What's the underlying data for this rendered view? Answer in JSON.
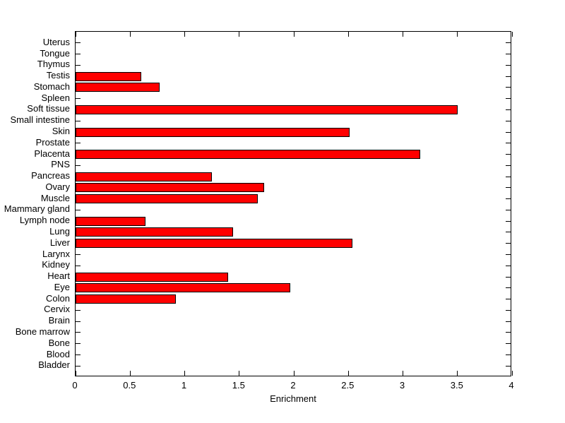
{
  "chart_data": {
    "type": "bar",
    "orientation": "horizontal",
    "title": "",
    "xlabel": "Enrichment",
    "ylabel": "",
    "xlim": [
      0,
      4
    ],
    "xticks": [
      0,
      0.5,
      1,
      1.5,
      2,
      2.5,
      3,
      3.5,
      4
    ],
    "xtick_labels": [
      "0",
      "0.5",
      "1",
      "1.5",
      "2",
      "2.5",
      "3",
      "3.5",
      "4"
    ],
    "categories": [
      "Uterus",
      "Tongue",
      "Thymus",
      "Testis",
      "Stomach",
      "Spleen",
      "Soft tissue",
      "Small intestine",
      "Skin",
      "Prostate",
      "Placenta",
      "PNS",
      "Pancreas",
      "Ovary",
      "Muscle",
      "Mammary gland",
      "Lymph node",
      "Lung",
      "Liver",
      "Larynx",
      "Kidney",
      "Heart",
      "Eye",
      "Colon",
      "Cervix",
      "Brain",
      "Bone marrow",
      "Bone",
      "Blood",
      "Bladder"
    ],
    "values": [
      0,
      0,
      0,
      0.6,
      0.77,
      0,
      3.5,
      0,
      2.51,
      0,
      3.16,
      0,
      1.25,
      1.73,
      1.67,
      0,
      0.64,
      1.44,
      2.54,
      0,
      0,
      1.4,
      1.97,
      0.92,
      0,
      0,
      0,
      0,
      0,
      0
    ],
    "bar_color": "#ff0000",
    "bar_edge_color": "#000000",
    "axis_color": "#000000",
    "background_color": "#ffffff",
    "grid": false,
    "legend": null
  }
}
